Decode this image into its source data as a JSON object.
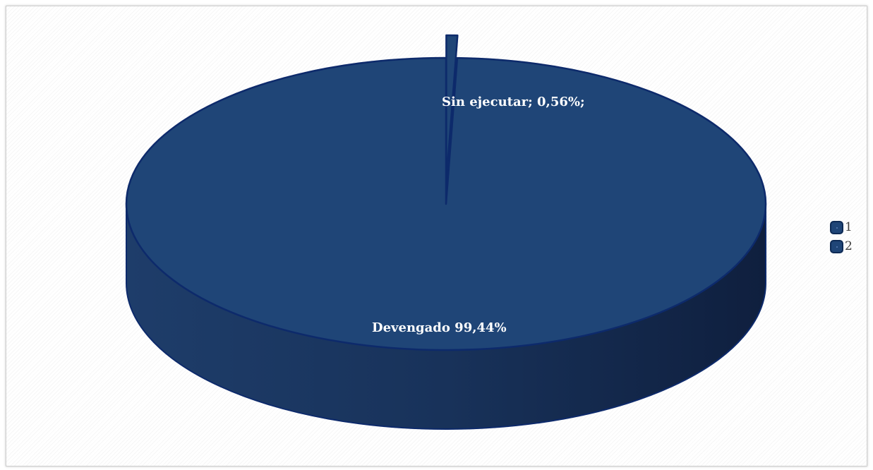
{
  "chart_data": {
    "type": "pie",
    "title": "",
    "slices": [
      {
        "label": "Sin ejecutar; 0,56%;",
        "value": 0.56,
        "legend": "1",
        "exploded": true
      },
      {
        "label": "Devengado 99,44%",
        "value": 99.44,
        "legend": "2",
        "exploded": false
      }
    ],
    "legend": {
      "position": "right",
      "entries": [
        "1",
        "2"
      ]
    },
    "style": "3d",
    "colors": {
      "top": "#1f4577",
      "side": "#1b3660",
      "edge": "#0d2a6b"
    }
  }
}
